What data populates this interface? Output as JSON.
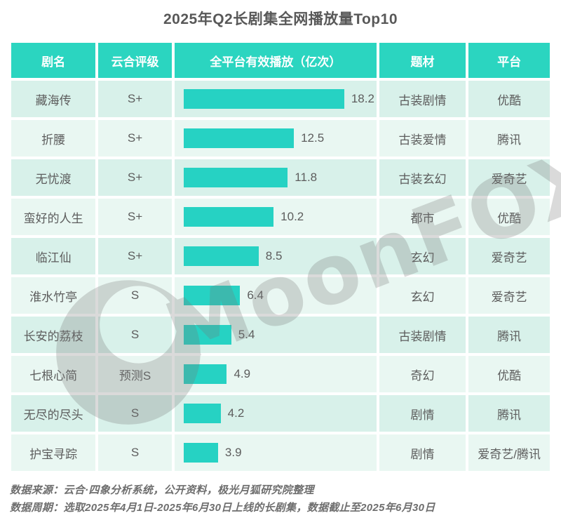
{
  "title": "2025年Q2长剧集全网播放量Top10",
  "colors": {
    "accent_header": "#2bd5c0",
    "bar": "#26d2c3",
    "row_odd": "#d8f1ea",
    "row_even": "#e9f7f2",
    "text": "#5d5d5d",
    "footer_text": "#6e6e6e",
    "watermark_gray": "#787878"
  },
  "table": {
    "headers": [
      "剧名",
      "云合评级",
      "全平台有效播放（亿次）",
      "题材",
      "平台"
    ],
    "rows": [
      {
        "name": "藏海传",
        "rating": "S+",
        "plays": 18.2,
        "genre": "古装剧情",
        "platform": "优酷"
      },
      {
        "name": "折腰",
        "rating": "S+",
        "plays": 12.5,
        "genre": "古装爱情",
        "platform": "腾讯"
      },
      {
        "name": "无忧渡",
        "rating": "S+",
        "plays": 11.8,
        "genre": "古装玄幻",
        "platform": "爱奇艺"
      },
      {
        "name": "蛮好的人生",
        "rating": "S+",
        "plays": 10.2,
        "genre": "都市",
        "platform": "优酷"
      },
      {
        "name": "临江仙",
        "rating": "S+",
        "plays": 8.5,
        "genre": "玄幻",
        "platform": "爱奇艺"
      },
      {
        "name": "淮水竹亭",
        "rating": "S",
        "plays": 6.4,
        "genre": "玄幻",
        "platform": "爱奇艺"
      },
      {
        "name": "长安的荔枝",
        "rating": "S",
        "plays": 5.4,
        "genre": "古装剧情",
        "platform": "腾讯"
      },
      {
        "name": "七根心简",
        "rating": "预测S",
        "plays": 4.9,
        "genre": "奇幻",
        "platform": "优酷"
      },
      {
        "name": "无尽的尽头",
        "rating": "S",
        "plays": 4.2,
        "genre": "剧情",
        "platform": "腾讯"
      },
      {
        "name": "护宝寻踪",
        "rating": "S",
        "plays": 3.9,
        "genre": "剧情",
        "platform": "爱奇艺/腾讯"
      }
    ]
  },
  "chart_data": {
    "type": "bar",
    "orientation": "horizontal",
    "title": "2025年Q2长剧集全网播放量Top10",
    "categories": [
      "藏海传",
      "折腰",
      "无忧渡",
      "蛮好的人生",
      "临江仙",
      "淮水竹亭",
      "长安的荔枝",
      "七根心简",
      "无尽的尽头",
      "护宝寻踪"
    ],
    "values": [
      18.2,
      12.5,
      11.8,
      10.2,
      8.5,
      6.4,
      5.4,
      4.9,
      4.2,
      3.9
    ],
    "xlabel": "全平台有效播放（亿次）",
    "ylabel": "剧名",
    "xlim": [
      0,
      18.2
    ],
    "grid": false,
    "legend": false,
    "bar_color": "#26d2c3",
    "data_labels": [
      "18.2",
      "12.5",
      "11.8",
      "10.2",
      "8.5",
      "6.4",
      "5.4",
      "4.9",
      "4.2",
      "3.9"
    ]
  },
  "watermark": {
    "text": "MoonFOX",
    "logo": "moonfox-crescent-logo"
  },
  "footer": {
    "source": "数据来源：云合·四象分析系统，公开资料，极光月狐研究院整理",
    "period": "数据周期：选取2025年4月1日-2025年6月30日上线的长剧集，数据截止至2025年6月30日"
  }
}
